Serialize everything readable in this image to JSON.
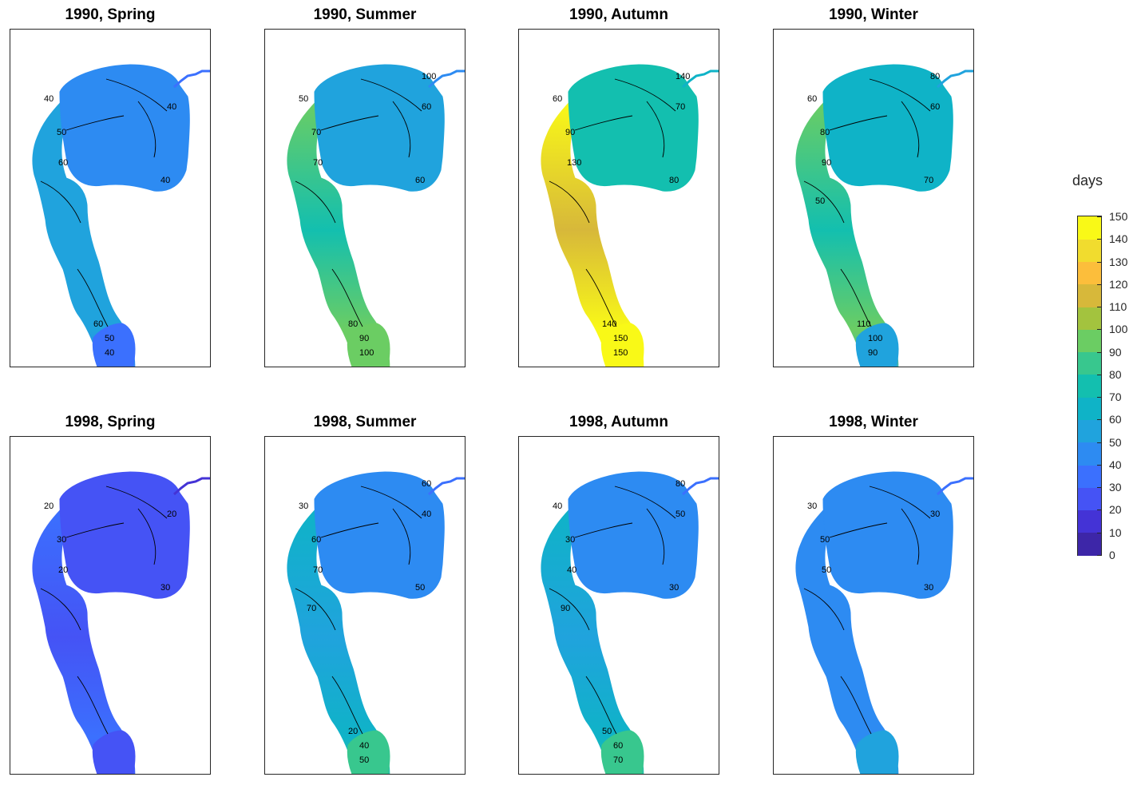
{
  "chart_data": {
    "type": "heatmap",
    "colorbar": {
      "title": "days",
      "ticks": [
        "150",
        "140",
        "130",
        "120",
        "110",
        "100",
        "90",
        "80",
        "70",
        "60",
        "50",
        "40",
        "30",
        "20",
        "10",
        "0"
      ],
      "range": [
        0,
        150
      ],
      "colors": [
        "#3d26a8",
        "#4433d6",
        "#4553f5",
        "#3b70fe",
        "#2d8bf2",
        "#20a3dd",
        "#0fb3c7",
        "#13bfaf",
        "#38c78e",
        "#6bcd63",
        "#a3c33e",
        "#d7b83a",
        "#fcbe3b",
        "#f1dc2e",
        "#f9f917"
      ]
    },
    "panels": [
      {
        "title": "1990, Spring",
        "year": "1990",
        "season": "Spring",
        "north_value": 45,
        "channel_value": 55,
        "south_value": 35,
        "contour_labels": [
          "40",
          "40",
          "40",
          "50",
          "60",
          "60",
          "50",
          "40"
        ]
      },
      {
        "title": "1990, Summer",
        "year": "1990",
        "season": "Summer",
        "north_value": 50,
        "channel_value": 95,
        "south_value": 90,
        "contour_labels": [
          "50",
          "60",
          "60",
          "70",
          "70",
          "80",
          "90",
          "100",
          "100"
        ]
      },
      {
        "title": "1990, Autumn",
        "year": "1990",
        "season": "Autumn",
        "north_value": 75,
        "channel_value": 145,
        "south_value": 140,
        "contour_labels": [
          "60",
          "70",
          "80",
          "90",
          "130",
          "140",
          "150",
          "150",
          "140"
        ]
      },
      {
        "title": "1990, Winter",
        "year": "1990",
        "season": "Winter",
        "north_value": 60,
        "channel_value": 95,
        "south_value": 55,
        "contour_labels": [
          "60",
          "60",
          "70",
          "80",
          "90",
          "110",
          "100",
          "90",
          "80",
          "50"
        ]
      },
      {
        "title": "1998, Spring",
        "year": "1998",
        "season": "Spring",
        "north_value": 25,
        "channel_value": 30,
        "south_value": 25,
        "contour_labels": [
          "20",
          "20",
          "30",
          "30",
          "20"
        ]
      },
      {
        "title": "1998, Summer",
        "year": "1998",
        "season": "Summer",
        "north_value": 45,
        "channel_value": 65,
        "south_value": 80,
        "contour_labels": [
          "30",
          "40",
          "50",
          "60",
          "70",
          "20",
          "40",
          "50",
          "60",
          "70"
        ]
      },
      {
        "title": "1998, Autumn",
        "year": "1998",
        "season": "Autumn",
        "north_value": 45,
        "channel_value": 65,
        "south_value": 85,
        "contour_labels": [
          "40",
          "50",
          "30",
          "30",
          "40",
          "50",
          "60",
          "70",
          "80",
          "90"
        ]
      },
      {
        "title": "1998, Winter",
        "year": "1998",
        "season": "Winter",
        "north_value": 40,
        "channel_value": 45,
        "south_value": 50,
        "contour_labels": [
          "30",
          "30",
          "30",
          "50",
          "50"
        ]
      }
    ]
  }
}
